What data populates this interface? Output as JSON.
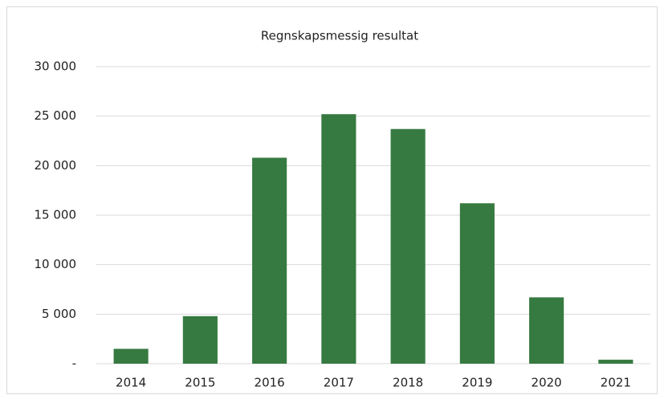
{
  "chart_data": {
    "type": "bar",
    "title": "Regnskapsmessig resultat",
    "categories": [
      "2014",
      "2015",
      "2016",
      "2017",
      "2018",
      "2019",
      "2020",
      "2021"
    ],
    "values": [
      1500,
      4800,
      20800,
      25200,
      23700,
      16200,
      6700,
      400
    ],
    "color": "#367a41",
    "ylim": [
      0,
      30000
    ],
    "yticks": [
      {
        "value": 0,
        "label": "-"
      },
      {
        "value": 5000,
        "label": "5 000"
      },
      {
        "value": 10000,
        "label": "10 000"
      },
      {
        "value": 15000,
        "label": "15 000"
      },
      {
        "value": 20000,
        "label": "20 000"
      },
      {
        "value": 25000,
        "label": "25 000"
      },
      {
        "value": 30000,
        "label": "30 000"
      }
    ],
    "grid": true
  }
}
